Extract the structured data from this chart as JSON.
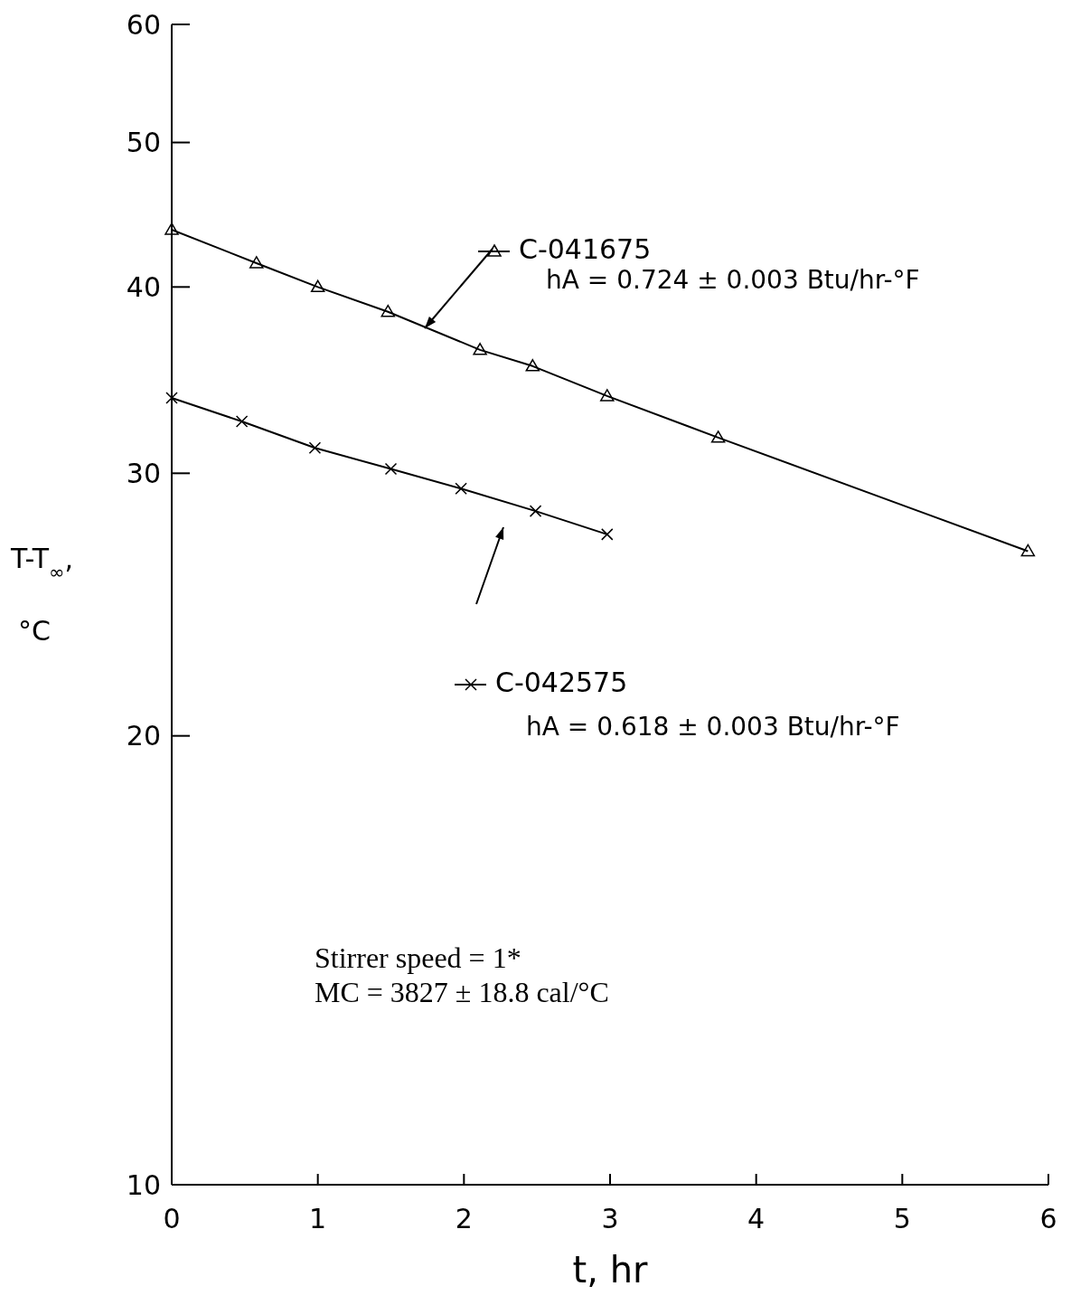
{
  "chart_data": {
    "type": "line",
    "xlabel": "t, hr",
    "ylabel": "T-T$_{∞}$, °C",
    "log": "y",
    "xlim": [
      0,
      6
    ],
    "xticks": [
      0,
      1,
      2,
      3,
      4,
      5,
      6
    ],
    "ylim": [
      10,
      60
    ],
    "yticks": [
      10,
      20,
      30,
      40,
      50,
      60
    ],
    "grid": false,
    "legend": "center",
    "line_style": "solid",
    "series": [
      {
        "name": "C-041675",
        "color": "#000000",
        "marker": "triangle",
        "x": [
          0,
          0.58,
          1.0,
          1.48,
          2.11,
          2.47,
          2.98,
          3.74,
          5.86
        ],
        "values": [
          43.7,
          41.5,
          40.0,
          38.5,
          36.3,
          35.4,
          33.8,
          31.7,
          26.6
        ]
      },
      {
        "name": "C-042575",
        "color": "#000000",
        "marker": "cross",
        "x": [
          0,
          0.48,
          0.98,
          1.5,
          1.98,
          2.49,
          2.98
        ],
        "values": [
          33.7,
          32.5,
          31.2,
          30.2,
          29.3,
          28.3,
          27.3
        ]
      }
    ],
    "annotations": [
      "hA = 0.724 ± 0.003 Btu/hr-°F",
      "hA = 0.618 ± 0.003 Btu/hr-°F",
      "Stirrer speed = 1*",
      "MC = 3827 ± 18.8 cal/°C"
    ]
  }
}
